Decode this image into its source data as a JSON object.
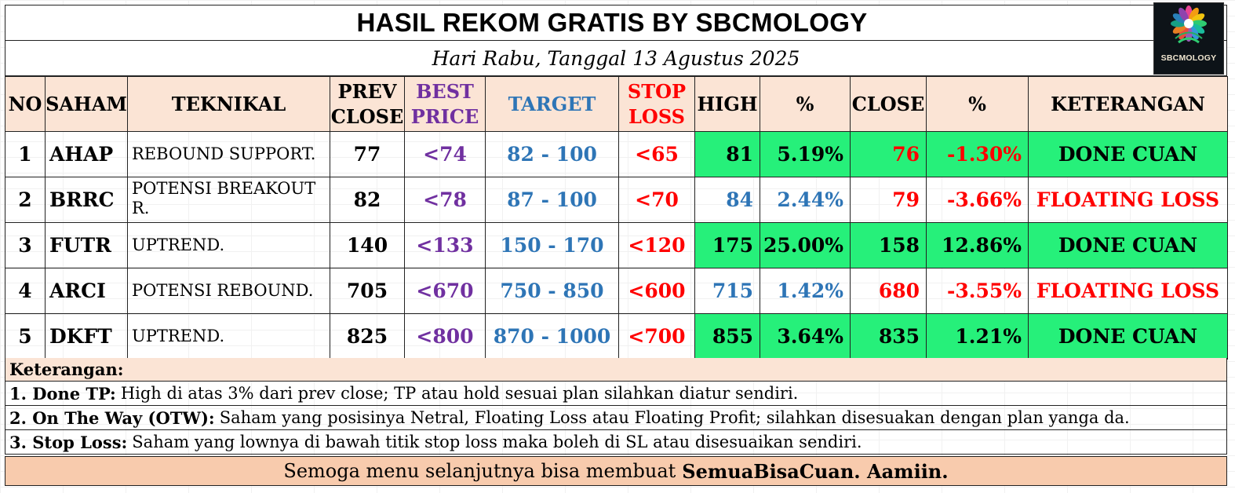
{
  "title": "HASIL REKOM GRATIS BY SBCMOLOGY",
  "subtitle": "Hari Rabu, Tanggal 13 Agustus 2025",
  "logo": {
    "name": "SBCMOLOGY"
  },
  "headers": {
    "no": "NO",
    "saham": "SAHAM",
    "teknikal": "TEKNIKAL",
    "prev_close_1": "PREV",
    "prev_close_2": "CLOSE",
    "best_price_1": "BEST",
    "best_price_2": "PRICE",
    "target": "TARGET",
    "stop_loss_1": "STOP",
    "stop_loss_2": "LOSS",
    "high": "HIGH",
    "pct_high": "%",
    "close": "CLOSE",
    "pct_close": "%",
    "keterangan": "KETERANGAN"
  },
  "rows": [
    {
      "no": "1",
      "saham": "AHAP",
      "teknikal": "REBOUND SUPPORT.",
      "prev_close": "77",
      "best_price": "<74",
      "target": "82 - 100",
      "stop_loss": "<65",
      "high": "81",
      "pct_high": "5.19%",
      "close": "76",
      "pct_close": "-1.30%",
      "keterangan": "DONE CUAN"
    },
    {
      "no": "2",
      "saham": "BRRC",
      "teknikal": "POTENSI BREAKOUT R.",
      "prev_close": "82",
      "best_price": "<78",
      "target": "87 - 100",
      "stop_loss": "<70",
      "high": "84",
      "pct_high": "2.44%",
      "close": "79",
      "pct_close": "-3.66%",
      "keterangan": "FLOATING LOSS"
    },
    {
      "no": "3",
      "saham": "FUTR",
      "teknikal": "UPTREND.",
      "prev_close": "140",
      "best_price": "<133",
      "target": "150 - 170",
      "stop_loss": "<120",
      "high": "175",
      "pct_high": "25.00%",
      "close": "158",
      "pct_close": "12.86%",
      "keterangan": "DONE CUAN"
    },
    {
      "no": "4",
      "saham": "ARCI",
      "teknikal": "POTENSI REBOUND.",
      "prev_close": "705",
      "best_price": "<670",
      "target": "750 - 850",
      "stop_loss": "<600",
      "high": "715",
      "pct_high": "1.42%",
      "close": "680",
      "pct_close": "-3.55%",
      "keterangan": "FLOATING LOSS"
    },
    {
      "no": "5",
      "saham": "DKFT",
      "teknikal": "UPTREND.",
      "prev_close": "825",
      "best_price": "<800",
      "target": "870 - 1000",
      "stop_loss": "<700",
      "high": "855",
      "pct_high": "3.64%",
      "close": "835",
      "pct_close": "1.21%",
      "keterangan": "DONE CUAN"
    }
  ],
  "notes": {
    "header": "Keterangan:",
    "items": [
      {
        "label": "1. Done TP:",
        "text": "High di atas 3% dari prev close; TP atau hold sesuai plan silahkan diatur sendiri."
      },
      {
        "label": "2. On The Way (OTW):",
        "text": "Saham yang posisinya Netral, Floating Loss atau Floating Profit; silahkan disesuakan dengan plan yanga da."
      },
      {
        "label": "3. Stop Loss:",
        "text": "Saham yang lownya di bawah titik stop loss maka boleh di SL atau disesuaikan sendiri."
      }
    ]
  },
  "footer": {
    "text": "Semoga menu selanjutnya bisa membuat",
    "bold": "SemuaBisaCuan. Aamiin."
  },
  "colors": {
    "header_bg": "#fbe4d5",
    "done_green": "#26f07a",
    "purple": "#7030a0",
    "blue": "#2e75b6",
    "red": "#ff0000",
    "footer_bg": "#f8cbad"
  }
}
